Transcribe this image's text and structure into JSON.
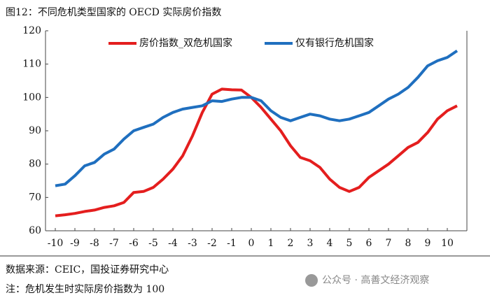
{
  "chart_data": {
    "type": "line",
    "title": "图12：不同危机类型国家的 OECD 实际房价指数",
    "x": [
      -10,
      -9.5,
      -9,
      -8.5,
      -8,
      -7.5,
      -7,
      -6.5,
      -6,
      -5.5,
      -5,
      -4.5,
      -4,
      -3.5,
      -3,
      -2.5,
      -2,
      -1.5,
      -1,
      -0.5,
      0,
      0.5,
      1,
      1.5,
      2,
      2.5,
      3,
      3.5,
      4,
      4.5,
      5,
      5.5,
      6,
      6.5,
      7,
      7.5,
      8,
      8.5,
      9,
      9.5,
      10,
      10.5
    ],
    "series": [
      {
        "name": "房价指数_双危机国家",
        "color": "#e41e1e",
        "values": [
          64.5,
          64.8,
          65.2,
          65.8,
          66.2,
          67,
          67.5,
          68.5,
          71.5,
          71.8,
          73,
          75.5,
          78.5,
          82.5,
          88.5,
          95.5,
          101,
          102.5,
          102.3,
          102.2,
          100,
          97,
          93.5,
          90,
          85.5,
          82,
          81,
          79,
          75.5,
          73,
          71.8,
          73,
          76,
          78,
          80,
          82.5,
          85,
          86.5,
          89.5,
          93.5,
          96,
          97.5
        ]
      },
      {
        "name": "仅有银行危机国家",
        "color": "#1f6fbf",
        "values": [
          73.5,
          74,
          76.5,
          79.5,
          80.5,
          83,
          84.5,
          87.5,
          90,
          91,
          92,
          94,
          95.5,
          96.5,
          97,
          97.5,
          99,
          98.8,
          99.5,
          100,
          100,
          99,
          96,
          94,
          93,
          94,
          95,
          94.5,
          93.5,
          93,
          93.5,
          94.5,
          95.5,
          97.5,
          99.5,
          101,
          103,
          106,
          109.5,
          111,
          112,
          114
        ]
      }
    ],
    "xlim": [
      -10.5,
      11
    ],
    "xticks": [
      -10,
      -9,
      -8,
      -7,
      -6,
      -5,
      -4,
      -3,
      -2,
      -1,
      0,
      1,
      2,
      3,
      4,
      5,
      6,
      7,
      8,
      9,
      10
    ],
    "ylim": [
      60,
      120
    ],
    "yticks": [
      60,
      70,
      80,
      90,
      100,
      110,
      120
    ],
    "grid": false,
    "legend": "top"
  },
  "footer": {
    "source": "数据来源：CEIC，国投证券研究中心",
    "note": "注：危机发生时实际房价指数为 100",
    "watermark": "公众号 · 高善文经济观察"
  }
}
